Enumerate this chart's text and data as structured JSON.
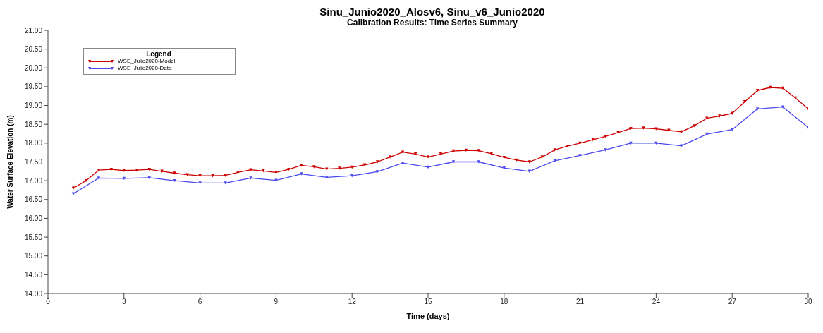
{
  "chart_data": {
    "type": "line",
    "title": "Sinu_Junio2020_Alosv6, Sinu_v6_Junio2020",
    "subtitle": "Calibration Results: Time Series Summary",
    "xlabel": "Time (days)",
    "ylabel": "Water Surface Elevation (m)",
    "legend_title": "Legend",
    "legend": "top left",
    "marker": "triangle",
    "line_style": "solid",
    "grid": false,
    "xlim": [
      0,
      30
    ],
    "xticks": [
      0,
      3,
      6,
      9,
      12,
      15,
      18,
      21,
      24,
      27,
      30
    ],
    "ylim": [
      14,
      21
    ],
    "yticks": [
      {
        "value": 14,
        "label": "14.00"
      },
      {
        "value": 14.5,
        "label": "14.50"
      },
      {
        "value": 15,
        "label": "15.00"
      },
      {
        "value": 15.5,
        "label": "15.50"
      },
      {
        "value": 16,
        "label": "16.00"
      },
      {
        "value": 16.5,
        "label": "16.50"
      },
      {
        "value": 17,
        "label": "17.00"
      },
      {
        "value": 17.5,
        "label": "17.50"
      },
      {
        "value": 18,
        "label": "18.00"
      },
      {
        "value": 18.5,
        "label": "18.50"
      },
      {
        "value": 19,
        "label": "19.00"
      },
      {
        "value": 19.5,
        "label": "19.50"
      },
      {
        "value": 20,
        "label": "20.00"
      },
      {
        "value": 20.5,
        "label": "20.50"
      },
      {
        "value": 21,
        "label": "21.00"
      }
    ],
    "series": [
      {
        "name": "WSE_Julio2020-Model",
        "color": "#cc0000",
        "x": [
          1,
          1.5,
          2,
          2.5,
          3,
          3.5,
          4,
          4.5,
          5,
          5.5,
          6,
          6.5,
          7,
          7.5,
          8,
          8.5,
          9,
          9.5,
          10,
          10.5,
          11,
          11.5,
          12,
          12.5,
          13,
          13.5,
          14,
          14.5,
          15,
          15.5,
          16,
          16.5,
          17,
          17.5,
          18,
          18.5,
          19,
          19.5,
          20,
          20.5,
          21,
          21.5,
          22,
          22.5,
          23,
          23.5,
          24,
          24.5,
          25,
          25.5,
          26,
          26.5,
          27,
          27.5,
          28,
          28.5,
          29,
          29.5,
          30
        ],
        "values": [
          16.8,
          17.0,
          17.28,
          17.3,
          17.27,
          17.28,
          17.3,
          17.25,
          17.2,
          17.16,
          17.13,
          17.13,
          17.14,
          17.22,
          17.29,
          17.26,
          17.22,
          17.3,
          17.41,
          17.37,
          17.31,
          17.33,
          17.36,
          17.42,
          17.5,
          17.63,
          17.76,
          17.71,
          17.63,
          17.71,
          17.79,
          17.81,
          17.8,
          17.72,
          17.62,
          17.55,
          17.5,
          17.63,
          17.82,
          17.92,
          18.0,
          18.09,
          18.18,
          18.28,
          18.39,
          18.4,
          18.38,
          18.34,
          18.3,
          18.46,
          18.66,
          18.72,
          18.79,
          19.1,
          19.4,
          19.48,
          19.46,
          19.2,
          18.91
        ]
      },
      {
        "name": "WSE_Julio2020-Data",
        "color": "#4a4aee",
        "x": [
          1,
          2,
          3,
          4,
          5,
          6,
          7,
          8,
          9,
          10,
          11,
          12,
          13,
          14,
          15,
          16,
          17,
          18,
          19,
          20,
          21,
          22,
          23,
          24,
          25,
          26,
          27,
          28,
          29,
          30
        ],
        "values": [
          16.65,
          17.07,
          17.06,
          17.08,
          17.0,
          16.94,
          16.94,
          17.07,
          17.01,
          17.18,
          17.09,
          17.13,
          17.24,
          17.47,
          17.36,
          17.5,
          17.5,
          17.34,
          17.25,
          17.53,
          17.67,
          17.82,
          18.0,
          18.0,
          17.93,
          18.24,
          18.36,
          18.91,
          18.96,
          18.42
        ]
      }
    ]
  }
}
